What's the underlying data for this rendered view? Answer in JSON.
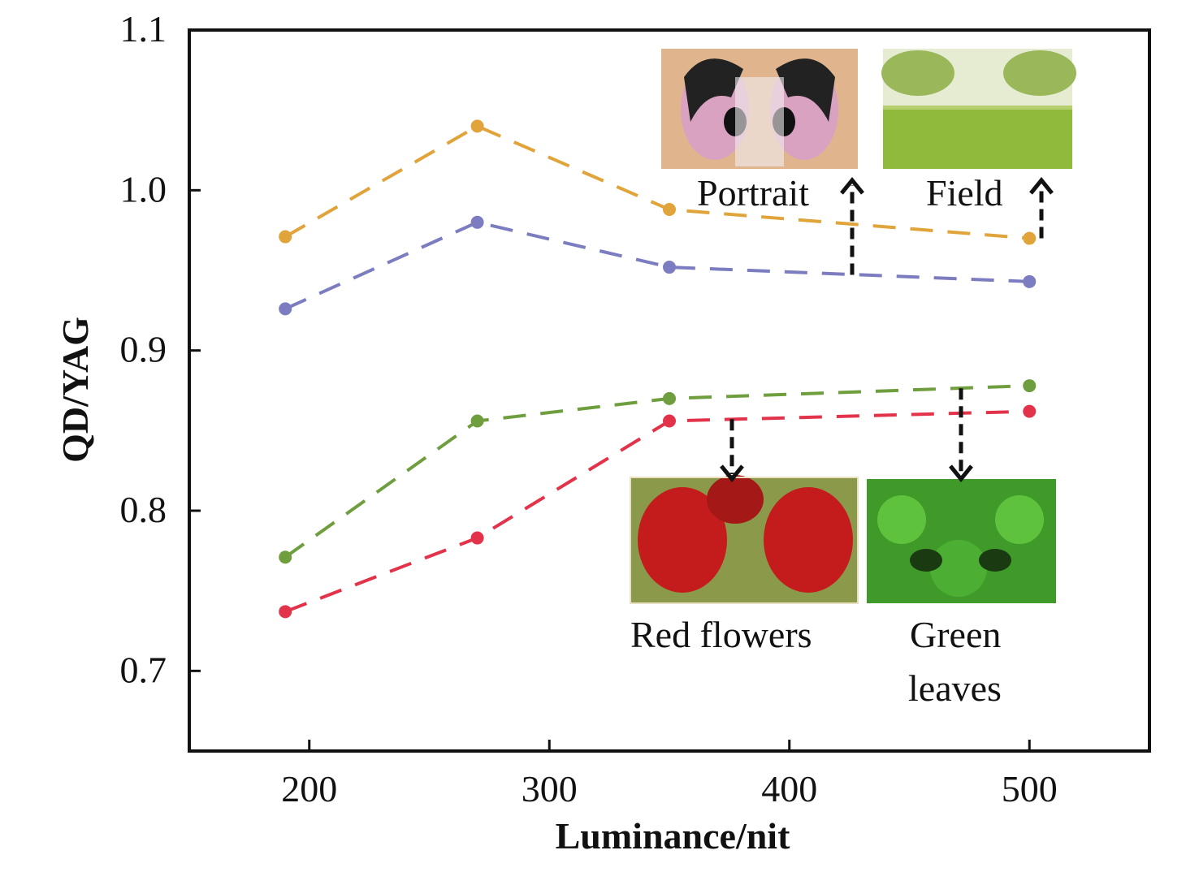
{
  "chart_data": {
    "type": "line",
    "title": "",
    "xlabel": "Luminance/nit",
    "ylabel": "QD/YAG",
    "xlim": [
      150,
      550
    ],
    "ylim": [
      0.65,
      1.1
    ],
    "xticks": [
      200,
      300,
      400,
      500
    ],
    "xtick_labels": [
      "200",
      "300",
      "400",
      "500"
    ],
    "yticks": [
      0.7,
      0.8,
      0.9,
      1.0,
      1.1
    ],
    "ytick_labels": [
      "0.7",
      "0.8",
      "0.9",
      "1.0",
      "1.1"
    ],
    "grid": false,
    "x": [
      190,
      270,
      350,
      500
    ],
    "series": [
      {
        "name": "Field",
        "color": "#e0a43a",
        "values": [
          0.971,
          1.04,
          0.988,
          0.97
        ]
      },
      {
        "name": "Portrait",
        "color": "#7c7cc0",
        "values": [
          0.926,
          0.98,
          0.952,
          0.943
        ]
      },
      {
        "name": "Green leaves",
        "color": "#6f9e3f",
        "values": [
          0.771,
          0.856,
          0.87,
          0.878
        ]
      },
      {
        "name": "Red flowers",
        "color": "#e3334a",
        "values": [
          0.737,
          0.783,
          0.856,
          0.862
        ]
      }
    ],
    "annotations": [
      {
        "label": "Portrait",
        "series": "Portrait",
        "at_x": 430
      },
      {
        "label": "Field",
        "series": "Field",
        "at_x": 505
      },
      {
        "label": "Red flowers",
        "series": "Red flowers",
        "at_x": 378
      },
      {
        "label": "Green leaves",
        "series": "Green leaves",
        "at_x": 470
      }
    ]
  }
}
